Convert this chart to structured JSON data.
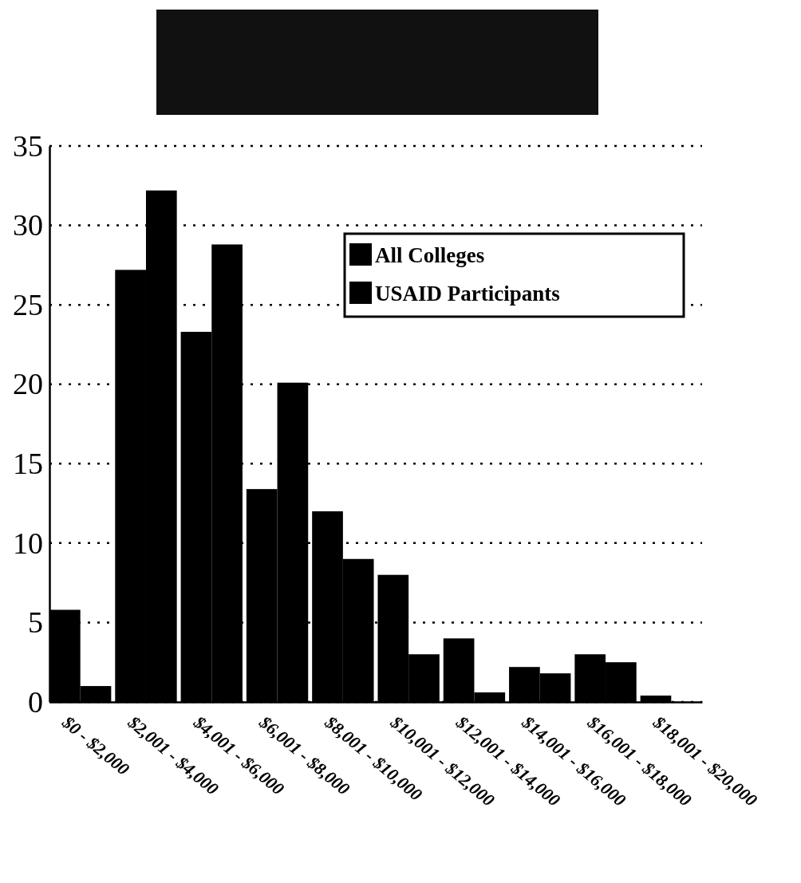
{
  "chart_data": {
    "type": "bar",
    "categories": [
      "$0 - $2,000",
      "$2,001 - $4,000",
      "$4,001 - $6,000",
      "$6,001 - $8,000",
      "$8,001 - $10,000",
      "$10,001 - $12,000",
      "$12,001 - $14,000",
      "$14,001 - $16,000",
      "$16,001 - $18,000",
      "$18,001 - $20,000"
    ],
    "series": [
      {
        "name": "All Colleges",
        "color": "#000000",
        "values": [
          5.8,
          27.2,
          23.3,
          13.4,
          12,
          8,
          4,
          2.2,
          3,
          0.4
        ]
      },
      {
        "name": "USAID Participants",
        "color": "#000000",
        "values": [
          1,
          32.2,
          28.8,
          20.1,
          9,
          3,
          0.6,
          1.8,
          2.5,
          null
        ]
      }
    ],
    "ylim": [
      0,
      35
    ],
    "yticks": [
      0,
      5,
      10,
      15,
      20,
      25,
      30,
      35
    ],
    "grid": "y",
    "legend": "top right"
  }
}
